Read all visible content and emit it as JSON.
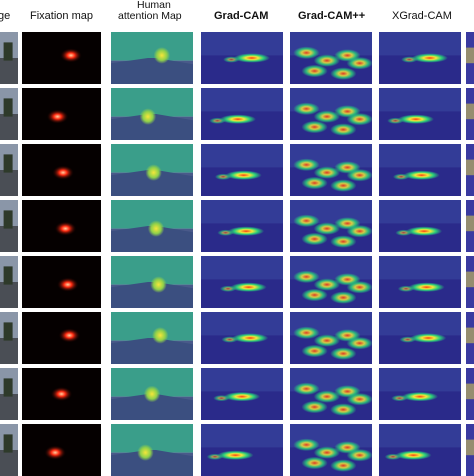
{
  "headers": {
    "col0": "ge",
    "fixation": "Fixation map",
    "human_line1": "Human",
    "human_line2": "attention Map",
    "gradcam": "Grad-CAM",
    "gradcampp": "Grad-CAM++",
    "xgradcam": "XGrad-CAM"
  },
  "colors": {
    "fixation_bg": "#050000",
    "fixation_spot": "#ff2a10",
    "human_bg": "#2f8f8a",
    "human_spot": "#f6e63a",
    "cam_bg": "#2a2a8a",
    "cam_hot": "#ff3a10",
    "cam_warm": "#f2e83a",
    "cam_mid": "#2ad07a"
  },
  "rows": 8
}
